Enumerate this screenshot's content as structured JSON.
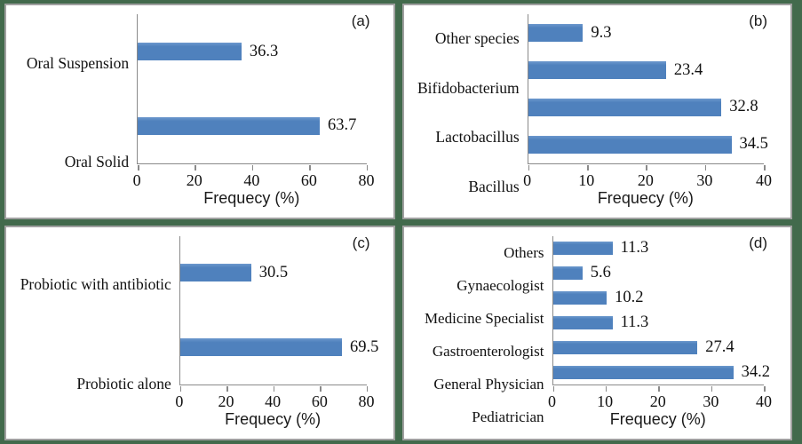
{
  "style": {
    "frame_background": "#426a4c",
    "panel_border": "#a0a0a0",
    "bar_color": "#4f81bd",
    "axis_color": "#8a8a8a",
    "text_color": "#111111"
  },
  "chart_data": [
    {
      "type": "bar",
      "orientation": "horizontal",
      "panel": "(a)",
      "categories": [
        "Oral Suspension",
        "Oral Solid"
      ],
      "values": [
        36.3,
        63.7
      ],
      "xlabel": "Frequecy (%)",
      "xlim": [
        0,
        80
      ],
      "ticks": [
        0,
        20,
        40,
        60,
        80
      ],
      "grid": false,
      "legend": false
    },
    {
      "type": "bar",
      "orientation": "horizontal",
      "panel": "(b)",
      "categories": [
        "Other species",
        "Bifidobacterium",
        "Lactobacillus",
        "Bacillus"
      ],
      "values": [
        9.3,
        23.4,
        32.8,
        34.5
      ],
      "xlabel": "Frequecy (%)",
      "xlim": [
        0,
        40
      ],
      "ticks": [
        0,
        10,
        20,
        30,
        40
      ],
      "grid": false,
      "legend": false
    },
    {
      "type": "bar",
      "orientation": "horizontal",
      "panel": "(c)",
      "categories": [
        "Probiotic with antibiotic",
        "Probiotic alone"
      ],
      "values": [
        30.5,
        69.5
      ],
      "xlabel": "Frequecy (%)",
      "xlim": [
        0,
        80
      ],
      "ticks": [
        0,
        20,
        40,
        60,
        80
      ],
      "grid": false,
      "legend": false
    },
    {
      "type": "bar",
      "orientation": "horizontal",
      "panel": "(d)",
      "categories": [
        "Others",
        "Gynaecologist",
        "Medicine Specialist",
        "Gastroenterologist",
        "General Physician",
        "Pediatrician"
      ],
      "values": [
        11.3,
        5.6,
        10.2,
        11.3,
        27.4,
        34.2
      ],
      "xlabel": "Frequecy (%)",
      "xlim": [
        0,
        40
      ],
      "ticks": [
        0,
        10,
        20,
        30,
        40
      ],
      "grid": false,
      "legend": false
    }
  ]
}
